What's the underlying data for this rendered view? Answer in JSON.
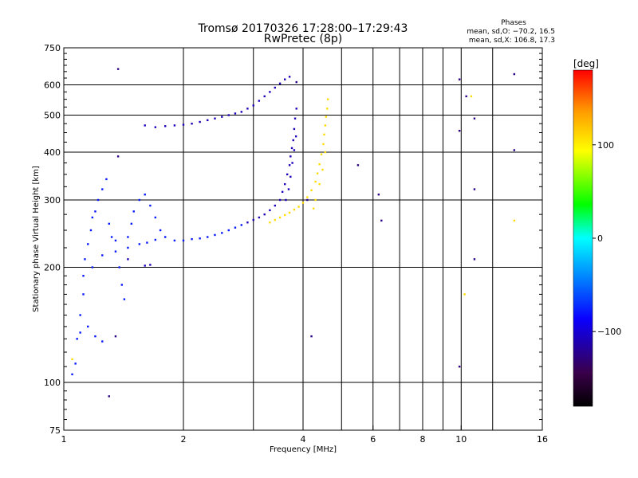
{
  "chart_data": {
    "type": "scatter",
    "title": "Tromsø 20170326 17:28:00–17:29:43",
    "subtitle": "RwPretec (8p)",
    "stats": {
      "heading": "Phases",
      "line_o": "mean, sd,O: −70.2, 16.5",
      "line_x": "mean, sd,X: 106.8, 17.3"
    },
    "xlabel": "Frequency [MHz]",
    "ylabel": "Stationary phase Virtual Height [km]",
    "xscale": "log",
    "yscale": "log",
    "xlim": [
      1,
      16
    ],
    "ylim": [
      75,
      750
    ],
    "xticks": [
      1,
      2,
      4,
      6,
      8,
      10,
      16
    ],
    "xtick_labels": [
      "1",
      "2",
      "4",
      "6",
      "8",
      "10",
      "16"
    ],
    "yticks": [
      75,
      100,
      200,
      300,
      400,
      500,
      600,
      750
    ],
    "ytick_labels": [
      "75",
      "100",
      "200",
      "300",
      "400",
      "500",
      "600",
      "750"
    ],
    "grid": true,
    "colorbar": {
      "label": "[deg]",
      "range": [
        -180,
        180
      ],
      "ticks": [
        100,
        0,
        -100
      ],
      "tick_labels": [
        "100",
        "0",
        "−100"
      ],
      "colors": [
        "#000000",
        "#3a004a",
        "#0a00ff",
        "#0080ff",
        "#00ffff",
        "#00ff00",
        "#ffff00",
        "#ff9900",
        "#ff0000"
      ]
    },
    "series": [
      {
        "phase_deg": -78,
        "points": [
          [
            1.05,
            105
          ],
          [
            1.07,
            112
          ],
          [
            1.08,
            130
          ],
          [
            1.1,
            150
          ],
          [
            1.12,
            170
          ],
          [
            1.12,
            190
          ],
          [
            1.13,
            210
          ],
          [
            1.15,
            230
          ],
          [
            1.17,
            250
          ],
          [
            1.18,
            270
          ],
          [
            1.2,
            280
          ],
          [
            1.22,
            300
          ],
          [
            1.25,
            320
          ],
          [
            1.28,
            340
          ],
          [
            1.3,
            260
          ],
          [
            1.32,
            240
          ],
          [
            1.35,
            220
          ],
          [
            1.38,
            200
          ],
          [
            1.4,
            180
          ],
          [
            1.42,
            165
          ],
          [
            1.45,
            240
          ],
          [
            1.48,
            260
          ],
          [
            1.5,
            280
          ],
          [
            1.55,
            300
          ],
          [
            1.6,
            310
          ],
          [
            1.65,
            290
          ],
          [
            1.7,
            270
          ],
          [
            1.75,
            250
          ],
          [
            1.8,
            240
          ],
          [
            1.9,
            235
          ],
          [
            2.0,
            235
          ],
          [
            2.1,
            237
          ],
          [
            2.2,
            238
          ],
          [
            2.3,
            240
          ],
          [
            2.4,
            243
          ],
          [
            2.5,
            246
          ],
          [
            2.6,
            250
          ],
          [
            2.7,
            254
          ],
          [
            2.8,
            258
          ],
          [
            1.1,
            135
          ],
          [
            1.15,
            140
          ],
          [
            1.2,
            132
          ],
          [
            1.25,
            128
          ],
          [
            1.18,
            200
          ],
          [
            1.25,
            215
          ],
          [
            1.35,
            235
          ],
          [
            1.45,
            225
          ],
          [
            1.55,
            230
          ],
          [
            1.62,
            232
          ],
          [
            1.7,
            236
          ]
        ]
      },
      {
        "phase_deg": -108,
        "points": [
          [
            1.6,
            470
          ],
          [
            1.7,
            465
          ],
          [
            1.8,
            468
          ],
          [
            1.9,
            470
          ],
          [
            2.0,
            472
          ],
          [
            2.1,
            475
          ],
          [
            2.2,
            480
          ],
          [
            2.3,
            485
          ],
          [
            2.4,
            490
          ],
          [
            2.5,
            495
          ],
          [
            2.6,
            500
          ],
          [
            2.7,
            505
          ],
          [
            2.8,
            510
          ],
          [
            2.9,
            520
          ],
          [
            3.0,
            530
          ],
          [
            3.1,
            545
          ],
          [
            3.2,
            560
          ],
          [
            3.3,
            575
          ],
          [
            3.4,
            590
          ],
          [
            3.5,
            605
          ],
          [
            3.6,
            620
          ],
          [
            3.7,
            630
          ],
          [
            2.9,
            262
          ],
          [
            3.0,
            266
          ],
          [
            3.1,
            270
          ],
          [
            3.2,
            275
          ],
          [
            3.3,
            282
          ],
          [
            3.4,
            290
          ],
          [
            3.5,
            300
          ],
          [
            3.55,
            315
          ],
          [
            3.6,
            330
          ],
          [
            3.65,
            350
          ],
          [
            3.7,
            370
          ],
          [
            3.72,
            390
          ],
          [
            3.75,
            410
          ],
          [
            3.78,
            430
          ],
          [
            3.8,
            460
          ],
          [
            3.82,
            490
          ],
          [
            3.85,
            520
          ],
          [
            3.62,
            300
          ],
          [
            3.68,
            320
          ],
          [
            3.72,
            345
          ],
          [
            3.76,
            375
          ],
          [
            3.8,
            405
          ],
          [
            3.84,
            440
          ],
          [
            1.6,
            202
          ],
          [
            1.65,
            203
          ],
          [
            1.45,
            210
          ]
        ]
      },
      {
        "phase_deg": 108,
        "points": [
          [
            3.3,
            262
          ],
          [
            3.4,
            266
          ],
          [
            3.5,
            270
          ],
          [
            3.6,
            274
          ],
          [
            3.7,
            278
          ],
          [
            3.8,
            283
          ],
          [
            3.9,
            288
          ],
          [
            4.0,
            295
          ],
          [
            4.1,
            305
          ],
          [
            4.2,
            318
          ],
          [
            4.3,
            335
          ],
          [
            4.35,
            352
          ],
          [
            4.4,
            372
          ],
          [
            4.45,
            395
          ],
          [
            4.5,
            420
          ],
          [
            4.52,
            445
          ],
          [
            4.55,
            470
          ],
          [
            4.57,
            495
          ],
          [
            4.6,
            520
          ],
          [
            4.62,
            550
          ],
          [
            4.3,
            300
          ],
          [
            4.25,
            285
          ],
          [
            4.4,
            330
          ],
          [
            4.48,
            360
          ],
          [
            4.55,
            400
          ],
          [
            10.6,
            560
          ],
          [
            13.6,
            265
          ],
          [
            10.2,
            170
          ],
          [
            1.05,
            115
          ]
        ]
      },
      {
        "phase_deg": -125,
        "points": [
          [
            1.37,
            660
          ],
          [
            1.37,
            390
          ],
          [
            1.35,
            132
          ],
          [
            1.3,
            92
          ],
          [
            3.85,
            610
          ],
          [
            4.1,
            300
          ],
          [
            4.2,
            132
          ],
          [
            5.5,
            370
          ],
          [
            6.2,
            310
          ],
          [
            9.9,
            620
          ],
          [
            9.9,
            455
          ],
          [
            10.3,
            560
          ],
          [
            10.8,
            490
          ],
          [
            10.8,
            320
          ],
          [
            10.8,
            210
          ],
          [
            13.6,
            640
          ],
          [
            13.6,
            405
          ],
          [
            9.9,
            110
          ],
          [
            6.3,
            265
          ]
        ]
      }
    ]
  }
}
